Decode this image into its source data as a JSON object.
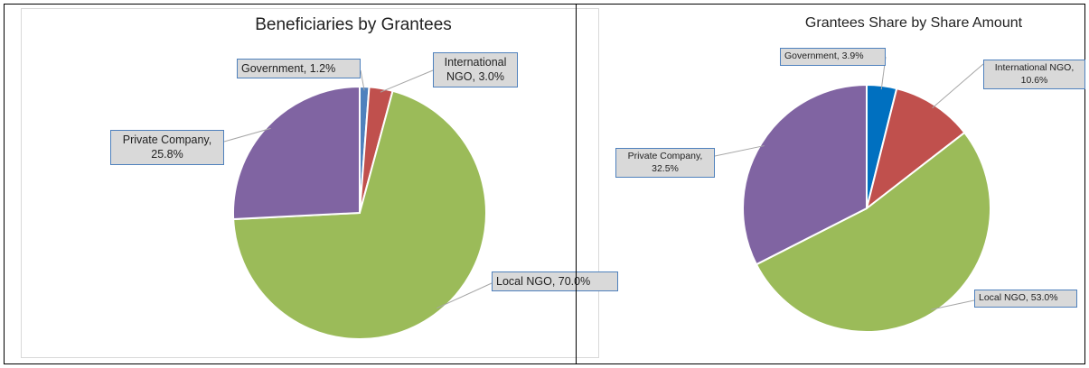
{
  "chart_data": [
    {
      "type": "pie",
      "title": "Beneficiaries by Grantees",
      "values": [
        1.2,
        3.0,
        70.0,
        25.8
      ],
      "value_labels": [
        "Government, 1.2%",
        "International NGO, 3.0%",
        "Local NGO, 70.0%",
        "Private Company, 25.8%"
      ],
      "colors": [
        "#4f81bd",
        "#c0504d",
        "#9bbb59",
        "#8064a2"
      ]
    },
    {
      "type": "pie",
      "title": "Grantees Share by Share Amount",
      "values": [
        3.9,
        10.6,
        53.0,
        32.5
      ],
      "value_labels": [
        "Government, 3.9%",
        "International NGO, 10.6%",
        "Local NGO, 53.0%",
        "Private Company, 32.5%"
      ],
      "colors": [
        "#0070c0",
        "#c0504d",
        "#9bbb59",
        "#8064a2"
      ]
    }
  ]
}
